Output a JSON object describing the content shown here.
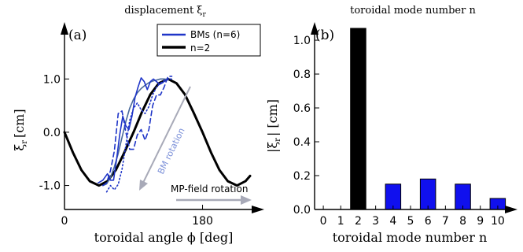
{
  "chart_data": [
    {
      "type": "line",
      "panel_label": "(a)",
      "title": "displacement ξ",
      "title_sub": "r",
      "xlabel": "toroidal angle ϕ [deg]",
      "ylabel_main": "ξ",
      "ylabel_sub": "r",
      "ylabel_unit": "[cm]",
      "xlim": [
        0,
        242
      ],
      "ylim": [
        -1.45,
        1.95
      ],
      "xticks": [
        {
          "value": 0,
          "label": "0"
        },
        {
          "value": 180,
          "label": "180"
        }
      ],
      "yticks": [
        {
          "value": 1.0,
          "label": "1.0"
        },
        {
          "value": 0.0,
          "label": "0.0"
        },
        {
          "value": -1.0,
          "label": "-1.0"
        }
      ],
      "legend": {
        "position": "top-right",
        "entries": [
          {
            "label": "BMs (n=6)",
            "color": "#1f35c8"
          },
          {
            "label": "n=2",
            "color": "#000000"
          }
        ]
      },
      "annotations": {
        "bm_rotation": "BM rotation",
        "mp_rotation": "MP-field rotation",
        "arrow_color": "#a8aab8",
        "bm_text_color": "#7a8fd8"
      },
      "series": [
        {
          "name": "n=2",
          "color": "#000000",
          "x": [
            0,
            11,
            22,
            33,
            45,
            56,
            67,
            78,
            90,
            101,
            112,
            123,
            135,
            146,
            157,
            168,
            180,
            191,
            202,
            213,
            225,
            236,
            242
          ],
          "y": [
            0.0,
            -0.38,
            -0.71,
            -0.92,
            -1.0,
            -0.92,
            -0.71,
            -0.38,
            0.0,
            0.38,
            0.71,
            0.92,
            1.0,
            0.92,
            0.71,
            0.38,
            0.0,
            -0.38,
            -0.71,
            -0.92,
            -1.0,
            -0.92,
            -0.82
          ]
        },
        {
          "color": "#4a6a9c",
          "x": [
            50,
            55,
            60,
            65,
            70,
            75,
            80,
            85,
            90,
            95,
            100,
            105,
            110,
            115,
            120,
            125,
            130,
            135
          ],
          "y": [
            -1.0,
            -0.97,
            -0.85,
            -0.65,
            -0.4,
            -0.1,
            0.2,
            0.45,
            0.62,
            0.74,
            0.82,
            0.88,
            0.93,
            0.96,
            0.98,
            1.0,
            1.0,
            0.99
          ]
        },
        {
          "color": "#1f35c8",
          "x": [
            44,
            50,
            56,
            60,
            64,
            68,
            72,
            76,
            80,
            84,
            88,
            92,
            96,
            100,
            104,
            108,
            112,
            116,
            120,
            124,
            128,
            132,
            136
          ],
          "y": [
            -0.95,
            -0.9,
            -0.78,
            -0.9,
            -0.9,
            -0.5,
            -0.05,
            0.3,
            0.12,
            0.05,
            0.3,
            0.65,
            0.85,
            1.02,
            0.95,
            0.8,
            0.95,
            1.0,
            0.95,
            0.9,
            0.93,
            0.98,
            1.0
          ]
        },
        {
          "color": "#1f35c8",
          "dash": "6,4",
          "x": [
            50,
            55,
            60,
            65,
            70,
            75,
            80,
            85,
            90,
            95,
            100,
            105,
            110,
            115,
            120,
            125,
            130,
            135,
            140
          ],
          "y": [
            -1.0,
            -0.95,
            -0.72,
            -0.35,
            0.35,
            0.4,
            0.0,
            -0.32,
            -0.32,
            -0.05,
            0.05,
            -0.15,
            0.05,
            0.5,
            0.7,
            0.7,
            0.85,
            1.05,
            1.05
          ]
        },
        {
          "color": "#1f35c8",
          "dash": "1.5,3",
          "x": [
            55,
            60,
            65,
            70,
            75,
            80,
            85,
            90,
            95,
            100,
            105,
            110,
            115,
            120,
            125,
            130,
            135,
            140
          ],
          "y": [
            -1.12,
            -1.0,
            -1.08,
            -0.98,
            -0.7,
            -0.25,
            0.22,
            0.45,
            0.55,
            0.42,
            0.35,
            0.48,
            0.7,
            0.85,
            0.92,
            0.97,
            1.0,
            1.0
          ]
        }
      ]
    },
    {
      "type": "bar",
      "panel_label": "(b)",
      "title": "toroidal mode number n",
      "xlabel": "toroidal mode number n",
      "ylabel_main": "|ξ",
      "ylabel_sub": "r",
      "ylabel_unit": "| [cm]",
      "xlim": [
        -0.5,
        10.5
      ],
      "ylim": [
        0,
        1.07
      ],
      "xticks": [
        "0",
        "1",
        "2",
        "3",
        "4",
        "5",
        "6",
        "7",
        "8",
        "9",
        "10"
      ],
      "yticks": [
        {
          "value": 0.0,
          "label": "0.0"
        },
        {
          "value": 0.2,
          "label": "0.2"
        },
        {
          "value": 0.4,
          "label": "0.4"
        },
        {
          "value": 0.6,
          "label": "0.6"
        },
        {
          "value": 0.8,
          "label": "0.8"
        },
        {
          "value": 1.0,
          "label": "1.0"
        }
      ],
      "bars": [
        {
          "n": 2,
          "value": 1.07,
          "color": "#000000"
        },
        {
          "n": 4,
          "value": 0.15,
          "color": "#1010ee"
        },
        {
          "n": 6,
          "value": 0.18,
          "color": "#1010ee"
        },
        {
          "n": 8,
          "value": 0.15,
          "color": "#1010ee"
        },
        {
          "n": 10,
          "value": 0.065,
          "color": "#1010ee"
        }
      ]
    }
  ]
}
